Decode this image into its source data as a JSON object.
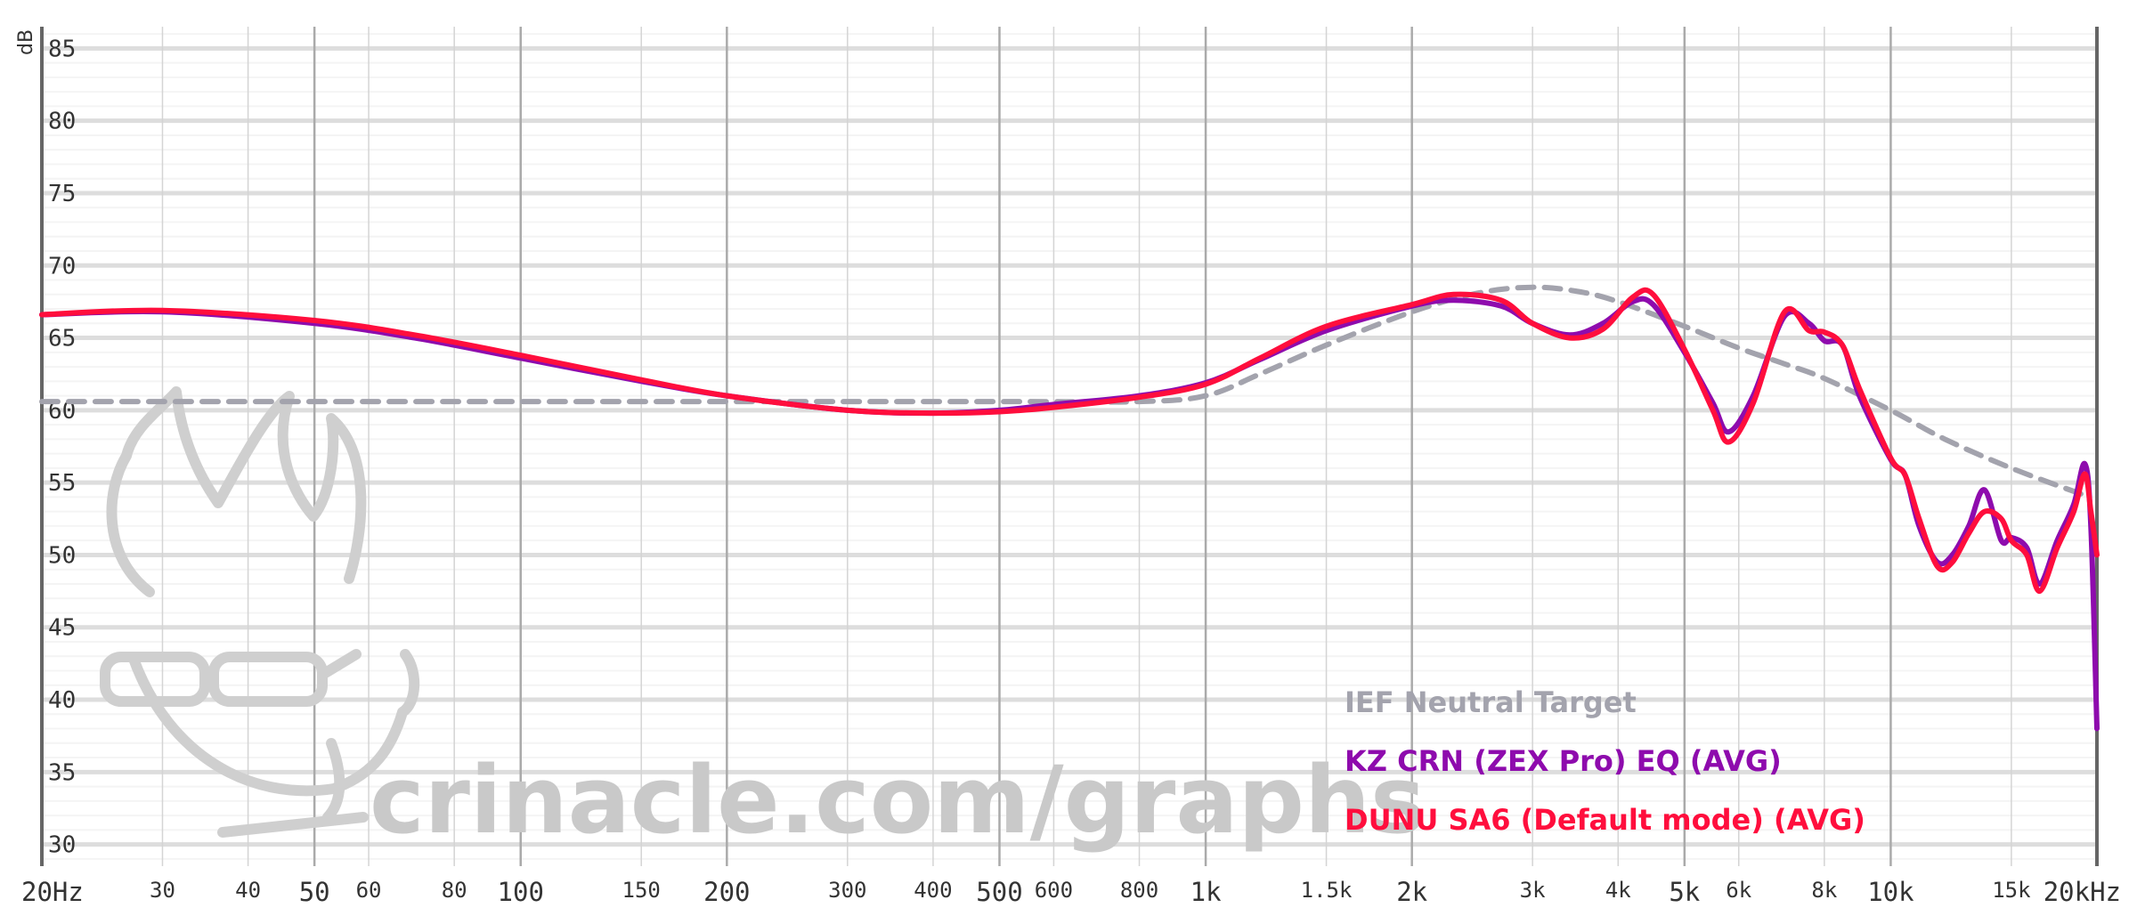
{
  "chart_data": {
    "type": "line",
    "xscale": "log",
    "xlim": [
      20,
      20000
    ],
    "ylim": [
      28.5,
      86.5
    ],
    "ylabel": "dB",
    "grid": true,
    "x_ticks": [
      {
        "v": 20,
        "label": "20Hz",
        "major": true
      },
      {
        "v": 30,
        "label": "30",
        "major": false
      },
      {
        "v": 40,
        "label": "40",
        "major": false
      },
      {
        "v": 50,
        "label": "50",
        "major": true
      },
      {
        "v": 60,
        "label": "60",
        "major": false
      },
      {
        "v": 80,
        "label": "80",
        "major": false
      },
      {
        "v": 100,
        "label": "100",
        "major": true
      },
      {
        "v": 150,
        "label": "150",
        "major": false
      },
      {
        "v": 200,
        "label": "200",
        "major": true
      },
      {
        "v": 300,
        "label": "300",
        "major": false
      },
      {
        "v": 400,
        "label": "400",
        "major": false
      },
      {
        "v": 500,
        "label": "500",
        "major": true
      },
      {
        "v": 600,
        "label": "600",
        "major": false
      },
      {
        "v": 800,
        "label": "800",
        "major": false
      },
      {
        "v": 1000,
        "label": "1k",
        "major": true
      },
      {
        "v": 1500,
        "label": "1.5k",
        "major": false
      },
      {
        "v": 2000,
        "label": "2k",
        "major": true
      },
      {
        "v": 3000,
        "label": "3k",
        "major": false
      },
      {
        "v": 4000,
        "label": "4k",
        "major": false
      },
      {
        "v": 5000,
        "label": "5k",
        "major": true
      },
      {
        "v": 6000,
        "label": "6k",
        "major": false
      },
      {
        "v": 8000,
        "label": "8k",
        "major": false
      },
      {
        "v": 10000,
        "label": "10k",
        "major": true
      },
      {
        "v": 15000,
        "label": "15k",
        "major": false
      },
      {
        "v": 20000,
        "label": "20kHz",
        "major": true
      }
    ],
    "y_ticks": [
      30,
      35,
      40,
      45,
      50,
      55,
      60,
      65,
      70,
      75,
      80,
      85
    ],
    "series": [
      {
        "name": "IEF Neutral Target",
        "color": "#a3a3ad",
        "dash": true,
        "x": [
          20,
          100,
          500,
          800,
          1000,
          1200,
          1500,
          2000,
          2500,
          3000,
          3500,
          4000,
          5000,
          6000,
          7000,
          8000,
          10000,
          12000,
          15000,
          19000
        ],
        "y": [
          60.6,
          60.6,
          60.6,
          60.6,
          61.0,
          62.5,
          64.5,
          66.8,
          68.1,
          68.5,
          68.2,
          67.5,
          65.8,
          64.3,
          63.2,
          62.2,
          60.0,
          58.0,
          56.0,
          54.2
        ]
      },
      {
        "name": "KZ CRN (ZEX Pro) EQ (AVG)",
        "color": "#8e0bad",
        "dash": false,
        "x": [
          20,
          30,
          50,
          70,
          100,
          150,
          200,
          300,
          400,
          500,
          600,
          800,
          1000,
          1200,
          1500,
          2000,
          2300,
          2700,
          3000,
          3400,
          3800,
          4200,
          4500,
          5000,
          5500,
          5800,
          6300,
          7000,
          7600,
          8000,
          8500,
          9000,
          10000,
          10500,
          11000,
          11700,
          12300,
          13000,
          13700,
          14500,
          15000,
          15800,
          16500,
          17500,
          18500,
          19200,
          19600,
          20000
        ],
        "y": [
          66.6,
          66.8,
          66.0,
          65.0,
          63.6,
          62.0,
          61.0,
          60.0,
          59.8,
          60.0,
          60.4,
          61.0,
          61.9,
          63.5,
          65.5,
          67.2,
          67.6,
          67.2,
          66.0,
          65.2,
          66.0,
          67.5,
          67.3,
          64.0,
          60.5,
          58.5,
          61.0,
          66.5,
          66.0,
          64.8,
          64.5,
          61.0,
          56.6,
          55.5,
          52.0,
          49.5,
          50.0,
          52.0,
          54.5,
          51.0,
          51.2,
          50.5,
          48.0,
          51.0,
          53.5,
          56.3,
          52.0,
          38.0
        ]
      },
      {
        "name": "DUNU SA6 (Default mode) (AVG)",
        "color": "#ff0e3d",
        "dash": false,
        "x": [
          20,
          30,
          50,
          70,
          100,
          150,
          200,
          300,
          400,
          500,
          600,
          800,
          1000,
          1200,
          1500,
          2000,
          2300,
          2700,
          3000,
          3400,
          3800,
          4200,
          4500,
          5000,
          5500,
          5800,
          6300,
          7000,
          7600,
          8000,
          8500,
          9000,
          10000,
          10500,
          11000,
          11700,
          12300,
          13000,
          13700,
          14500,
          15000,
          15800,
          16500,
          17500,
          18500,
          19200,
          19600,
          20000
        ],
        "y": [
          66.6,
          66.9,
          66.2,
          65.2,
          63.8,
          62.1,
          61.0,
          60.0,
          59.8,
          59.9,
          60.2,
          60.9,
          61.8,
          63.6,
          65.8,
          67.3,
          68.0,
          67.6,
          66.0,
          65.0,
          65.6,
          67.8,
          68.0,
          64.2,
          60.0,
          57.8,
          60.5,
          66.8,
          65.5,
          65.4,
          64.5,
          61.5,
          56.7,
          55.5,
          52.5,
          49.2,
          49.5,
          51.5,
          53.0,
          52.5,
          51.0,
          50.0,
          47.5,
          50.5,
          53.0,
          55.6,
          53.0,
          50.0
        ]
      }
    ]
  },
  "watermark": {
    "text": "crinacle.com/graphs"
  }
}
